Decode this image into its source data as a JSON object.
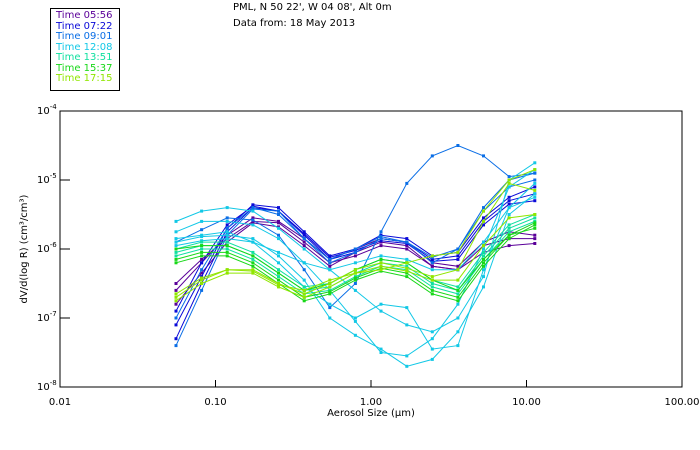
{
  "header": {
    "site": "PML, N 50 22', W 04 08', Alt 0m",
    "date": "Data from: 18 May 2013"
  },
  "legend": [
    {
      "label": "Time 05:56",
      "color": "#5a0099"
    },
    {
      "label": "Time 07:22",
      "color": "#0a0ad8"
    },
    {
      "label": "Time 09:01",
      "color": "#0a6ee6"
    },
    {
      "label": "Time 12:08",
      "color": "#12c8e6"
    },
    {
      "label": "Time 13:51",
      "color": "#10e0a0"
    },
    {
      "label": "Time 15:37",
      "color": "#18d818"
    },
    {
      "label": "Time 17:15",
      "color": "#90e600"
    }
  ],
  "chart_data": {
    "type": "line",
    "xscale": "log",
    "yscale": "log",
    "xlabel": "Aerosol Size (μm)",
    "ylabel": "dV/d(log R)  (cm³/cm³)",
    "xlim": [
      0.01,
      100
    ],
    "ylim_exponent": [
      -8,
      -4
    ],
    "xticks": [
      {
        "value": 0.01,
        "label": "0.01"
      },
      {
        "value": 0.1,
        "label": "0.10"
      },
      {
        "value": 1,
        "label": "1.00"
      },
      {
        "value": 10,
        "label": "10.00"
      },
      {
        "value": 100,
        "label": "100.00"
      }
    ],
    "yticks": [
      {
        "exp": -4,
        "base": "10",
        "sup": "-4"
      },
      {
        "exp": -5,
        "base": "10",
        "sup": "-5"
      },
      {
        "exp": -6,
        "base": "10",
        "sup": "-6"
      },
      {
        "exp": -7,
        "base": "10",
        "sup": "-7"
      },
      {
        "exp": -8,
        "base": "10",
        "sup": "-8"
      }
    ],
    "x": [
      0.0557,
      0.0814,
      0.119,
      0.174,
      0.254,
      0.372,
      0.543,
      0.794,
      1.16,
      1.7,
      2.48,
      3.62,
      5.29,
      7.73,
      11.3
    ],
    "value_note": "series values are log10 of dV/d(log R)",
    "series": [
      {
        "time": 0,
        "values": [
          -6.6,
          -6.2,
          -5.8,
          -5.55,
          -5.6,
          -5.85,
          -6.15,
          -6.0,
          -5.85,
          -5.9,
          -6.2,
          -6.25,
          -5.9,
          -5.75,
          -5.8
        ]
      },
      {
        "time": 0,
        "values": [
          -6.8,
          -6.35,
          -5.9,
          -5.62,
          -5.68,
          -5.95,
          -6.25,
          -6.05,
          -5.9,
          -5.95,
          -6.25,
          -6.3,
          -5.95,
          -5.85,
          -5.85
        ]
      },
      {
        "time": 0,
        "values": [
          -6.5,
          -6.15,
          -5.85,
          -5.6,
          -5.62,
          -5.9,
          -6.2,
          -6.1,
          -5.95,
          -6.0,
          -6.25,
          -6.3,
          -6.05,
          -5.95,
          -5.92
        ]
      },
      {
        "time": 1,
        "values": [
          -7.3,
          -6.5,
          -5.75,
          -5.4,
          -5.45,
          -5.8,
          -6.15,
          -6.05,
          -5.85,
          -5.9,
          -6.15,
          -6.1,
          -5.6,
          -5.3,
          -5.2
        ]
      },
      {
        "time": 1,
        "values": [
          -7.1,
          -6.4,
          -5.7,
          -5.36,
          -5.4,
          -5.75,
          -6.1,
          -6.0,
          -5.8,
          -5.85,
          -6.1,
          -6.05,
          -5.55,
          -5.25,
          -5.1
        ]
      },
      {
        "time": 1,
        "values": [
          -6.9,
          -6.2,
          -5.65,
          -5.38,
          -5.45,
          -5.78,
          -6.12,
          -6.02,
          -5.88,
          -5.92,
          -6.18,
          -6.15,
          -5.65,
          -5.35,
          -5.3
        ]
      },
      {
        "time": 2,
        "values": [
          -7.4,
          -6.6,
          -5.8,
          -5.42,
          -5.45,
          -5.85,
          -6.2,
          -6.05,
          -5.85,
          -5.9,
          -6.2,
          -6.0,
          -5.4,
          -5.0,
          -4.9
        ]
      },
      {
        "time": 2,
        "values": [
          -7.0,
          -6.3,
          -5.7,
          -5.4,
          -5.5,
          -5.85,
          -6.15,
          -6.0,
          -5.82,
          -5.9,
          -6.12,
          -6.0,
          -5.45,
          -5.1,
          -5.0
        ]
      },
      {
        "time": 2,
        "values": [
          -5.9,
          -5.72,
          -5.55,
          -5.58,
          -5.8,
          -6.3,
          -6.85,
          -6.5,
          -5.75,
          -5.05,
          -4.65,
          -4.5,
          -4.65,
          -4.95,
          -4.9
        ]
      },
      {
        "time": 3,
        "values": [
          -5.6,
          -5.45,
          -5.4,
          -5.45,
          -5.7,
          -6.0,
          -6.3,
          -6.6,
          -6.9,
          -7.1,
          -7.2,
          -7.0,
          -6.4,
          -5.0,
          -4.75
        ]
      },
      {
        "time": 3,
        "values": [
          -5.75,
          -5.6,
          -5.6,
          -5.65,
          -5.85,
          -6.2,
          -6.6,
          -7.05,
          -7.5,
          -7.55,
          -7.3,
          -6.8,
          -6.0,
          -5.1,
          -4.85
        ]
      },
      {
        "time": 3,
        "values": [
          -5.85,
          -5.8,
          -5.75,
          -5.9,
          -6.2,
          -6.55,
          -6.8,
          -7.0,
          -6.8,
          -6.85,
          -7.45,
          -7.4,
          -6.3,
          -5.4,
          -5.05
        ]
      },
      {
        "time": 3,
        "values": [
          -5.9,
          -5.82,
          -5.8,
          -5.85,
          -6.1,
          -6.45,
          -7.0,
          -7.25,
          -7.45,
          -7.7,
          -7.6,
          -7.2,
          -6.55,
          -5.5,
          -5.2
        ]
      },
      {
        "time": 3,
        "values": [
          -5.95,
          -5.88,
          -5.85,
          -5.9,
          -6.05,
          -6.2,
          -6.3,
          -6.2,
          -6.1,
          -6.15,
          -6.3,
          -6.3,
          -5.9,
          -5.4,
          -5.25
        ]
      },
      {
        "time": 4,
        "values": [
          -6.0,
          -5.9,
          -5.9,
          -6.05,
          -6.3,
          -6.55,
          -6.5,
          -6.3,
          -6.15,
          -6.2,
          -6.45,
          -6.55,
          -6.05,
          -5.65,
          -5.5
        ]
      },
      {
        "time": 4,
        "values": [
          -6.05,
          -5.95,
          -5.95,
          -6.1,
          -6.35,
          -6.6,
          -6.55,
          -6.35,
          -6.2,
          -6.25,
          -6.5,
          -6.6,
          -6.1,
          -5.7,
          -5.55
        ]
      },
      {
        "time": 4,
        "values": [
          -6.1,
          -6.0,
          -6.0,
          -6.15,
          -6.4,
          -6.65,
          -6.6,
          -6.4,
          -6.25,
          -6.3,
          -6.55,
          -6.65,
          -6.15,
          -5.75,
          -5.6
        ]
      },
      {
        "time": 5,
        "values": [
          -6.15,
          -6.05,
          -6.05,
          -6.2,
          -6.45,
          -6.7,
          -6.62,
          -6.42,
          -6.28,
          -6.35,
          -6.6,
          -6.7,
          -6.2,
          -5.8,
          -5.62
        ]
      },
      {
        "time": 5,
        "values": [
          -6.0,
          -5.95,
          -5.95,
          -6.1,
          -6.35,
          -6.6,
          -6.5,
          -6.3,
          -6.15,
          -6.2,
          -6.45,
          -6.6,
          -6.15,
          -5.8,
          -5.7
        ]
      },
      {
        "time": 5,
        "values": [
          -6.2,
          -6.1,
          -6.1,
          -6.25,
          -6.5,
          -6.75,
          -6.65,
          -6.45,
          -6.32,
          -6.4,
          -6.65,
          -6.75,
          -6.25,
          -5.85,
          -5.65
        ]
      },
      {
        "time": 6,
        "values": [
          -6.75,
          -6.5,
          -6.35,
          -6.35,
          -6.55,
          -6.7,
          -6.55,
          -6.35,
          -6.25,
          -6.32,
          -6.45,
          -6.45,
          -5.95,
          -5.55,
          -5.5
        ]
      },
      {
        "time": 6,
        "values": [
          -6.7,
          -6.45,
          -6.3,
          -6.3,
          -6.5,
          -6.65,
          -6.5,
          -6.3,
          -6.2,
          -6.28,
          -6.4,
          -6.3,
          -5.6,
          -5.05,
          -5.15
        ]
      },
      {
        "time": 6,
        "values": [
          -6.65,
          -6.42,
          -6.3,
          -6.32,
          -6.52,
          -6.6,
          -6.45,
          -6.35,
          -6.3,
          -6.2,
          -6.1,
          -6.05,
          -5.45,
          -5.0,
          -4.85
        ]
      }
    ]
  }
}
